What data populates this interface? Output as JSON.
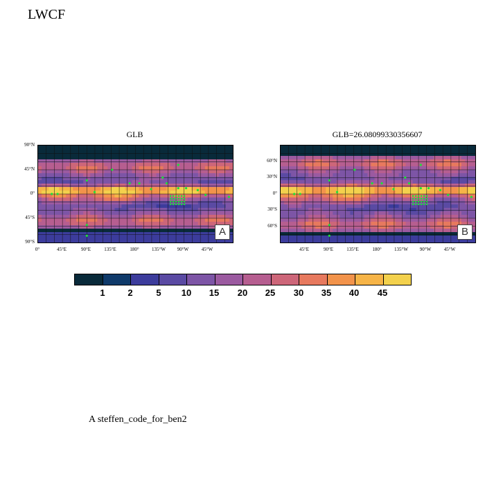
{
  "title": "LWCF",
  "footer_text": "A  steffen_code_for_ben2",
  "colorbar": {
    "colors": [
      "#092a3a",
      "#0f3a6a",
      "#3c3c9c",
      "#5a4aa3",
      "#7d55a6",
      "#9b5aa0",
      "#b65e90",
      "#cd6679",
      "#e7795e",
      "#f2934b",
      "#f6b447",
      "#f3d14d",
      "#e8f56a"
    ],
    "labels": [
      "1",
      "2",
      "5",
      "10",
      "15",
      "20",
      "25",
      "30",
      "35",
      "40",
      "45"
    ]
  },
  "panels": [
    {
      "title": "GLB",
      "badge": "A",
      "y_ticks": [
        "90°N",
        "45°N",
        "0°",
        "45°S",
        "90°S"
      ],
      "x_ticks": [
        "0°",
        "45°E",
        "90°E",
        "135°E",
        "180°",
        "135°W",
        "90°W",
        "45°W"
      ]
    },
    {
      "title": "GLB=26.08099330356607",
      "badge": "B",
      "y_ticks": [
        "60°N",
        "30°N",
        "0°",
        "30°S",
        "60°S"
      ],
      "x_ticks": [
        "45°E",
        "90°E",
        "135°E",
        "180°",
        "135°W",
        "90°W",
        "45°W"
      ]
    }
  ]
}
